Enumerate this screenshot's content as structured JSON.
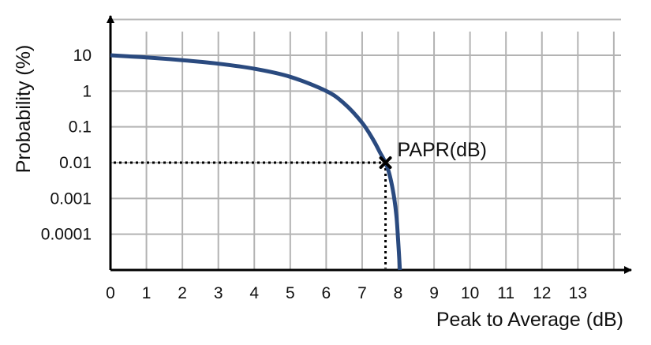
{
  "chart_data": {
    "type": "line",
    "title": "",
    "xlabel": "Peak to Average (dB)",
    "ylabel": "Probability (%)",
    "x_ticks": [
      "0",
      "1",
      "2",
      "3",
      "4",
      "5",
      "6",
      "7",
      "8",
      "9",
      "10",
      "11",
      "12",
      "13"
    ],
    "y_ticks": [
      "0.0001",
      "0.001",
      "0.01",
      "0.1",
      "1",
      "10"
    ],
    "y_scale": "log",
    "xlim": [
      0,
      14.2
    ],
    "ylim": [
      1e-05,
      10
    ],
    "grid": true,
    "legend": "none",
    "series": [
      {
        "color": "#2a4a7f",
        "x": [
          0,
          0.5,
          1,
          2,
          3,
          4,
          5,
          6,
          6.5,
          7,
          7.3,
          7.5,
          7.7,
          7.85,
          7.95,
          8.0,
          8.05
        ],
        "y": [
          10,
          9.3,
          8.7,
          7.3,
          5.8,
          4.2,
          2.5,
          1.0,
          0.45,
          0.13,
          0.045,
          0.019,
          0.0075,
          0.0018,
          0.00035,
          7e-05,
          1e-05
        ]
      }
    ],
    "annotations": [
      {
        "text": "PAPR(dB)",
        "x": 7.65,
        "y": 0.01,
        "marker": "x",
        "guide_lines": "dotted"
      }
    ]
  }
}
